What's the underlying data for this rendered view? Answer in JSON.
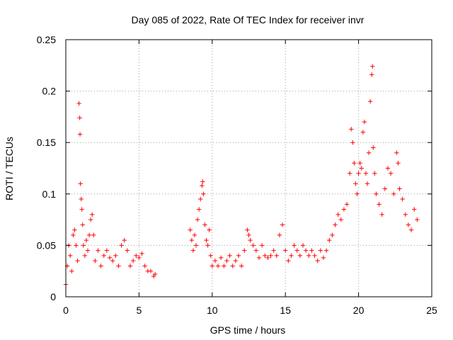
{
  "chart_data": {
    "type": "scatter",
    "title": "Day 085 of 2022, Rate Of TEC Index for receiver invr",
    "xlabel": "GPS time / hours",
    "ylabel": "ROTI / TECUs",
    "xlim": [
      0,
      25
    ],
    "ylim": [
      0,
      0.25
    ],
    "x_ticks": [
      0,
      5,
      10,
      15,
      20,
      25
    ],
    "y_ticks": [
      0,
      0.05,
      0.1,
      0.15,
      0.2,
      0.25
    ],
    "x_tick_labels": [
      "0",
      "5",
      "10",
      "15",
      "20",
      "25"
    ],
    "y_tick_labels": [
      "0",
      "0.05",
      "0.1",
      "0.15",
      "0.2",
      "0.25"
    ],
    "grid": true,
    "marker": "+",
    "color": "#ff0000",
    "data_gap_hours": [
      6.2,
      8.4
    ],
    "series": [
      {
        "name": "ROTI",
        "points": [
          [
            0.0,
            0.012
          ],
          [
            0.1,
            0.03
          ],
          [
            0.2,
            0.05
          ],
          [
            0.3,
            0.04
          ],
          [
            0.4,
            0.025
          ],
          [
            0.5,
            0.06
          ],
          [
            0.6,
            0.065
          ],
          [
            0.7,
            0.05
          ],
          [
            0.8,
            0.035
          ],
          [
            0.9,
            0.188
          ],
          [
            0.95,
            0.174
          ],
          [
            0.97,
            0.158
          ],
          [
            1.0,
            0.11
          ],
          [
            1.05,
            0.095
          ],
          [
            1.1,
            0.085
          ],
          [
            1.15,
            0.07
          ],
          [
            1.2,
            0.05
          ],
          [
            1.3,
            0.04
          ],
          [
            1.4,
            0.055
          ],
          [
            1.5,
            0.045
          ],
          [
            1.6,
            0.06
          ],
          [
            1.7,
            0.075
          ],
          [
            1.8,
            0.08
          ],
          [
            1.9,
            0.06
          ],
          [
            2.0,
            0.035
          ],
          [
            2.2,
            0.045
          ],
          [
            2.4,
            0.03
          ],
          [
            2.6,
            0.04
          ],
          [
            2.8,
            0.045
          ],
          [
            3.0,
            0.038
          ],
          [
            3.2,
            0.035
          ],
          [
            3.4,
            0.04
          ],
          [
            3.6,
            0.03
          ],
          [
            3.8,
            0.05
          ],
          [
            4.0,
            0.055
          ],
          [
            4.2,
            0.045
          ],
          [
            4.4,
            0.03
          ],
          [
            4.6,
            0.035
          ],
          [
            4.8,
            0.04
          ],
          [
            5.0,
            0.038
          ],
          [
            5.2,
            0.042
          ],
          [
            5.4,
            0.03
          ],
          [
            5.6,
            0.025
          ],
          [
            5.8,
            0.025
          ],
          [
            6.0,
            0.02
          ],
          [
            6.1,
            0.022
          ],
          [
            8.5,
            0.065
          ],
          [
            8.6,
            0.055
          ],
          [
            8.7,
            0.045
          ],
          [
            8.8,
            0.06
          ],
          [
            8.9,
            0.05
          ],
          [
            9.0,
            0.075
          ],
          [
            9.1,
            0.085
          ],
          [
            9.2,
            0.095
          ],
          [
            9.3,
            0.108
          ],
          [
            9.35,
            0.112
          ],
          [
            9.4,
            0.1
          ],
          [
            9.5,
            0.07
          ],
          [
            9.6,
            0.055
          ],
          [
            9.7,
            0.05
          ],
          [
            9.8,
            0.065
          ],
          [
            9.9,
            0.04
          ],
          [
            10.0,
            0.03
          ],
          [
            10.2,
            0.035
          ],
          [
            10.4,
            0.03
          ],
          [
            10.6,
            0.038
          ],
          [
            10.8,
            0.03
          ],
          [
            11.0,
            0.035
          ],
          [
            11.2,
            0.04
          ],
          [
            11.4,
            0.03
          ],
          [
            11.6,
            0.035
          ],
          [
            11.8,
            0.04
          ],
          [
            12.0,
            0.03
          ],
          [
            12.2,
            0.045
          ],
          [
            12.4,
            0.065
          ],
          [
            12.5,
            0.06
          ],
          [
            12.6,
            0.055
          ],
          [
            12.8,
            0.05
          ],
          [
            13.0,
            0.045
          ],
          [
            13.2,
            0.038
          ],
          [
            13.4,
            0.05
          ],
          [
            13.6,
            0.04
          ],
          [
            13.8,
            0.038
          ],
          [
            14.0,
            0.04
          ],
          [
            14.2,
            0.045
          ],
          [
            14.4,
            0.04
          ],
          [
            14.6,
            0.06
          ],
          [
            14.8,
            0.07
          ],
          [
            15.0,
            0.045
          ],
          [
            15.2,
            0.035
          ],
          [
            15.4,
            0.04
          ],
          [
            15.6,
            0.05
          ],
          [
            15.8,
            0.045
          ],
          [
            16.0,
            0.04
          ],
          [
            16.2,
            0.05
          ],
          [
            16.4,
            0.045
          ],
          [
            16.6,
            0.04
          ],
          [
            16.8,
            0.045
          ],
          [
            17.0,
            0.04
          ],
          [
            17.2,
            0.035
          ],
          [
            17.4,
            0.045
          ],
          [
            17.6,
            0.038
          ],
          [
            17.8,
            0.045
          ],
          [
            18.0,
            0.055
          ],
          [
            18.2,
            0.06
          ],
          [
            18.4,
            0.07
          ],
          [
            18.6,
            0.08
          ],
          [
            18.8,
            0.075
          ],
          [
            19.0,
            0.085
          ],
          [
            19.2,
            0.09
          ],
          [
            19.4,
            0.12
          ],
          [
            19.5,
            0.163
          ],
          [
            19.6,
            0.15
          ],
          [
            19.7,
            0.13
          ],
          [
            19.8,
            0.11
          ],
          [
            19.9,
            0.1
          ],
          [
            20.0,
            0.12
          ],
          [
            20.1,
            0.13
          ],
          [
            20.2,
            0.125
          ],
          [
            20.3,
            0.16
          ],
          [
            20.4,
            0.17
          ],
          [
            20.5,
            0.12
          ],
          [
            20.6,
            0.11
          ],
          [
            20.7,
            0.14
          ],
          [
            20.8,
            0.19
          ],
          [
            20.9,
            0.216
          ],
          [
            20.95,
            0.224
          ],
          [
            21.0,
            0.145
          ],
          [
            21.1,
            0.12
          ],
          [
            21.2,
            0.1
          ],
          [
            21.4,
            0.09
          ],
          [
            21.6,
            0.08
          ],
          [
            21.8,
            0.105
          ],
          [
            22.0,
            0.125
          ],
          [
            22.2,
            0.12
          ],
          [
            22.4,
            0.1
          ],
          [
            22.6,
            0.14
          ],
          [
            22.7,
            0.13
          ],
          [
            22.8,
            0.105
          ],
          [
            23.0,
            0.095
          ],
          [
            23.2,
            0.08
          ],
          [
            23.4,
            0.07
          ],
          [
            23.6,
            0.065
          ],
          [
            23.8,
            0.085
          ],
          [
            24.0,
            0.075
          ]
        ]
      }
    ]
  }
}
